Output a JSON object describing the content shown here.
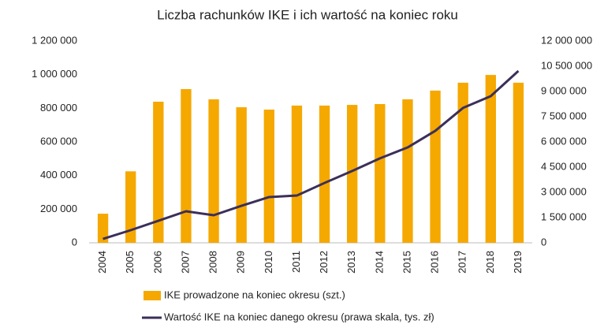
{
  "chart_data": {
    "type": "bar-line",
    "title": "Liczba rachunków IKE i ich wartość na koniec roku",
    "categories": [
      "2004",
      "2005",
      "2006",
      "2007",
      "2008",
      "2009",
      "2010",
      "2011",
      "2012",
      "2013",
      "2014",
      "2015",
      "2016",
      "2017",
      "2018",
      "2019"
    ],
    "series": [
      {
        "name": "IKE prowadzone na koniec okresu (szt.)",
        "type": "bar",
        "color": "#f5a800",
        "values": [
          173000,
          425000,
          839000,
          914000,
          853000,
          806000,
          792000,
          816000,
          816000,
          820000,
          825000,
          853000,
          905000,
          952000,
          998000,
          952000
        ]
      },
      {
        "name": "Wartość IKE na koniec danego okresu (prawa skala, tys. zł)",
        "type": "line",
        "color": "#3b2f5a",
        "axis": "y2",
        "values": [
          230000,
          750000,
          1310000,
          1875000,
          1640000,
          2200000,
          2720000,
          2810000,
          3560000,
          4270000,
          5020000,
          5670000,
          6660000,
          8020000,
          8720000,
          10220000
        ]
      }
    ],
    "ylim": [
      0,
      1200000
    ],
    "yticks": [
      0,
      {
        "value": 200000,
        "label": "200 000"
      },
      {
        "value": 400000,
        "label": "400 000"
      },
      {
        "value": 600000,
        "label": "600 000"
      },
      {
        "value": 800000,
        "label": "800 000"
      },
      {
        "value": 1000000,
        "label": "1 000 000"
      },
      {
        "value": 1200000,
        "label": "1 200 000"
      }
    ],
    "y2lim": [
      0,
      12000000
    ],
    "y2ticks": [
      0,
      {
        "value": 1500000,
        "label": "1 500 000"
      },
      {
        "value": 3000000,
        "label": "3 000 000"
      },
      {
        "value": 4500000,
        "label": "4 500 000"
      },
      {
        "value": 6000000,
        "label": "6 000 000"
      },
      {
        "value": 7500000,
        "label": "7 500 000"
      },
      {
        "value": 9000000,
        "label": "9 000 000"
      },
      {
        "value": 10500000,
        "label": "10 500 000"
      },
      {
        "value": 12000000,
        "label": "12 000 000"
      }
    ],
    "legend": "bottom"
  }
}
